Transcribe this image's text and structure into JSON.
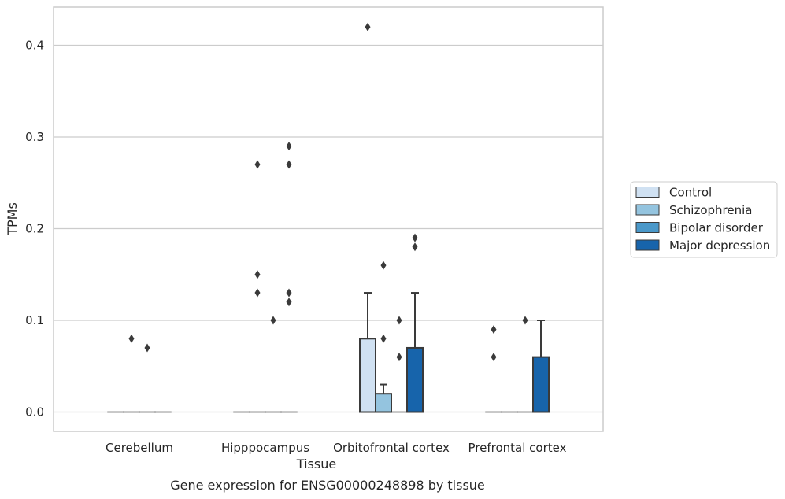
{
  "chart_data": {
    "type": "bar",
    "title": "",
    "caption": "Gene expression for ENSG00000248898 by tissue",
    "xlabel": "Tissue",
    "ylabel": "TPMs",
    "ylim": [
      -0.02,
      0.44
    ],
    "yticks": [
      0.0,
      0.1,
      0.2,
      0.3,
      0.4
    ],
    "ytick_labels": [
      "0.0",
      "0.1",
      "0.2",
      "0.3",
      "0.4"
    ],
    "grid": "horizontal",
    "legend_placement": "right",
    "categories": [
      "Cerebellum",
      "Hipppocampus",
      "Orbitofrontal cortex",
      "Prefrontal cortex"
    ],
    "series": [
      {
        "name": "Control",
        "color": "#d0e1f2",
        "values": [
          0.0,
          0.0,
          0.08,
          0.0
        ],
        "error_top": [
          null,
          null,
          0.13,
          null
        ],
        "outliers": [
          [],
          [],
          [
            0.42
          ],
          [
            0.09,
            0.06
          ]
        ]
      },
      {
        "name": "Schizophrenia",
        "color": "#94c4df",
        "values": [
          0.0,
          0.0,
          0.02,
          0.0
        ],
        "error_top": [
          null,
          null,
          0.03,
          null
        ],
        "outliers": [
          [
            0.08
          ],
          [
            0.27,
            0.15,
            0.13
          ],
          [
            0.16,
            0.08
          ],
          []
        ]
      },
      {
        "name": "Bipolar disorder",
        "color": "#4a98c9",
        "values": [
          0.0,
          0.0,
          0.0,
          0.0
        ],
        "error_top": [
          null,
          null,
          null,
          null
        ],
        "outliers": [
          [
            0.07
          ],
          [
            0.1
          ],
          [
            0.1,
            0.06
          ],
          [
            0.1
          ]
        ]
      },
      {
        "name": "Major depression",
        "color": "#1764ab",
        "values": [
          0.0,
          0.0,
          0.07,
          0.06
        ],
        "error_top": [
          null,
          null,
          0.13,
          0.1
        ],
        "outliers": [
          [],
          [
            0.29,
            0.27,
            0.13,
            0.12
          ],
          [
            0.19,
            0.18
          ],
          []
        ]
      }
    ]
  }
}
